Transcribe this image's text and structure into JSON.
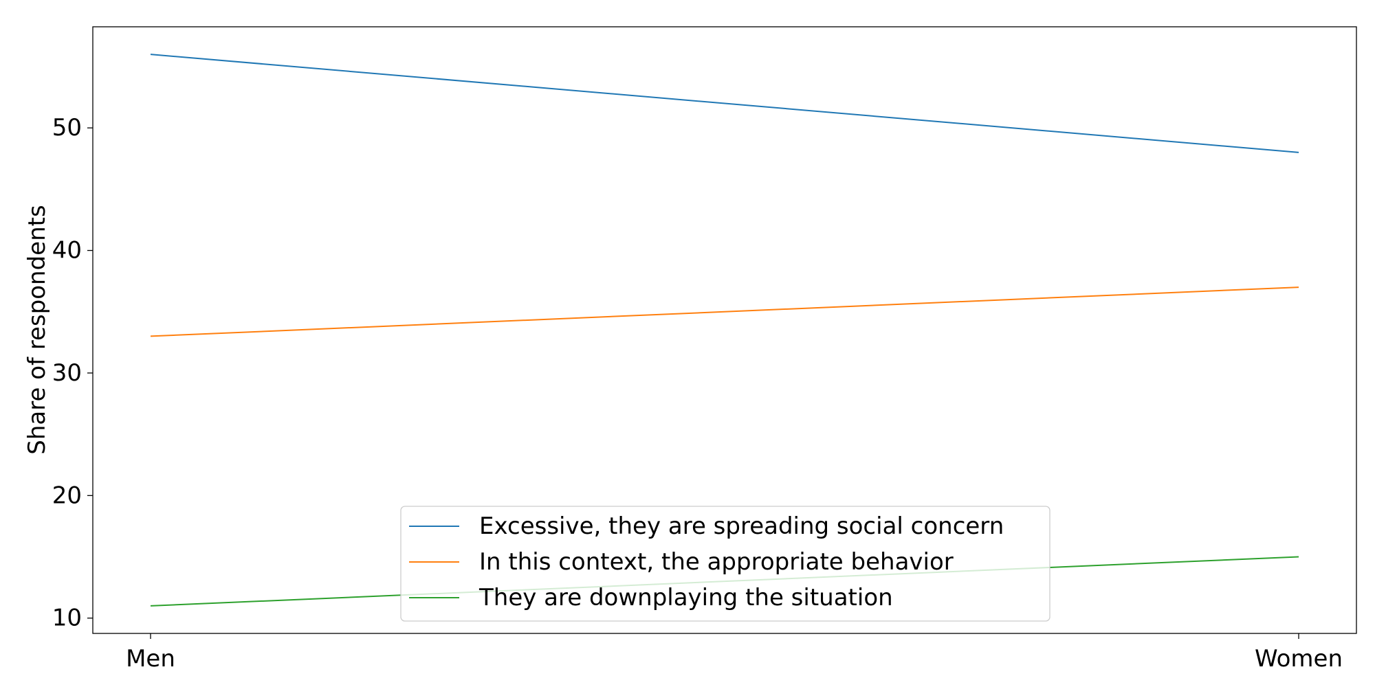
{
  "chart_data": {
    "type": "line",
    "title": "",
    "xlabel": "",
    "ylabel": "Share of respondents",
    "categories": [
      "Men",
      "Women"
    ],
    "series": [
      {
        "name": "Excessive, they are spreading social concern",
        "values": [
          56,
          48
        ],
        "color": "#1f77b4"
      },
      {
        "name": "In this context, the appropriate behavior",
        "values": [
          33,
          37
        ],
        "color": "#ff7f0e"
      },
      {
        "name": "They are downplaying the situation",
        "values": [
          11,
          15
        ],
        "color": "#2ca02c"
      }
    ],
    "ylim": [
      8.75,
      58.25
    ],
    "yticks": [
      10,
      20,
      30,
      40,
      50
    ],
    "grid": false,
    "legend_position": "lower-center"
  }
}
